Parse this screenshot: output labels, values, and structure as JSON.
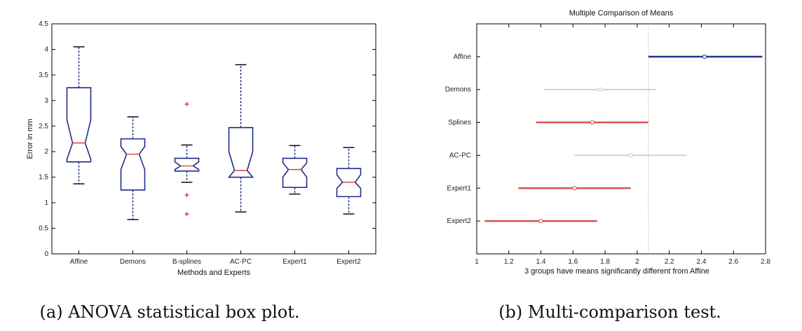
{
  "chart_data": [
    {
      "type": "box",
      "xlabel": "Methods and Experts",
      "ylabel": "Error in mm",
      "ylim": [
        0,
        4.5
      ],
      "yticks": [
        "0",
        "0.5",
        "1",
        "1.5",
        "2",
        "2.5",
        "3",
        "3.5",
        "4",
        "4.5"
      ],
      "categories": [
        "Affine",
        "Demons",
        "B-splines",
        "AC-PC",
        "Expert1",
        "Expert2"
      ],
      "boxes": [
        {
          "whisker_low": 1.37,
          "q1": 1.8,
          "median": 2.17,
          "q3": 3.25,
          "whisker_high": 4.05,
          "notch_low": 1.85,
          "notch_high": 2.62,
          "outliers": []
        },
        {
          "whisker_low": 0.67,
          "q1": 1.25,
          "median": 1.95,
          "q3": 2.25,
          "whisker_high": 2.68,
          "notch_low": 1.65,
          "notch_high": 2.1,
          "outliers": []
        },
        {
          "whisker_low": 1.4,
          "q1": 1.62,
          "median": 1.72,
          "q3": 1.87,
          "whisker_high": 2.13,
          "notch_low": 1.65,
          "notch_high": 1.8,
          "outliers": [
            2.93,
            1.15,
            0.78
          ]
        },
        {
          "whisker_low": 0.82,
          "q1": 1.5,
          "median": 1.63,
          "q3": 2.47,
          "whisker_high": 3.7,
          "notch_low": 1.5,
          "notch_high": 2.0,
          "outliers": []
        },
        {
          "whisker_low": 1.17,
          "q1": 1.3,
          "median": 1.65,
          "q3": 1.87,
          "whisker_high": 2.12,
          "notch_low": 1.5,
          "notch_high": 1.78,
          "outliers": []
        },
        {
          "whisker_low": 0.78,
          "q1": 1.12,
          "median": 1.4,
          "q3": 1.67,
          "whisker_high": 2.08,
          "notch_low": 1.28,
          "notch_high": 1.55,
          "outliers": []
        }
      ],
      "colors": {
        "box": "#1f2d8a",
        "median": "#d9534f",
        "outlier": "#cc2222"
      },
      "caption": "(a) ANOVA statistical box plot."
    },
    {
      "type": "interval",
      "title": "Multiple Comparison of Means",
      "xlabel": "3 groups have means significantly different from Affine",
      "xlim": [
        1,
        2.8
      ],
      "xticks": [
        "1",
        "1.2",
        "1.4",
        "1.6",
        "1.8",
        "2",
        "2.2",
        "2.4",
        "2.6",
        "2.8"
      ],
      "reference_line": 2.07,
      "groups": [
        {
          "name": "Affine",
          "mean": 2.42,
          "low": 2.07,
          "high": 2.78,
          "role": "selected"
        },
        {
          "name": "Demons",
          "mean": 1.77,
          "low": 1.42,
          "high": 2.12,
          "role": "neutral"
        },
        {
          "name": "Splines",
          "mean": 1.72,
          "low": 1.37,
          "high": 2.07,
          "role": "different"
        },
        {
          "name": "AC-PC",
          "mean": 1.96,
          "low": 1.61,
          "high": 2.31,
          "role": "neutral"
        },
        {
          "name": "Expert1",
          "mean": 1.61,
          "low": 1.26,
          "high": 1.96,
          "role": "different"
        },
        {
          "name": "Expert2",
          "mean": 1.4,
          "low": 1.05,
          "high": 1.75,
          "role": "different"
        }
      ],
      "colors": {
        "selected": "#1f2d8a",
        "different": "#d94a4a",
        "neutral": "#c8c8c8",
        "reference": "#bbbbbb"
      },
      "caption": "(b) Multi-comparison test."
    }
  ]
}
